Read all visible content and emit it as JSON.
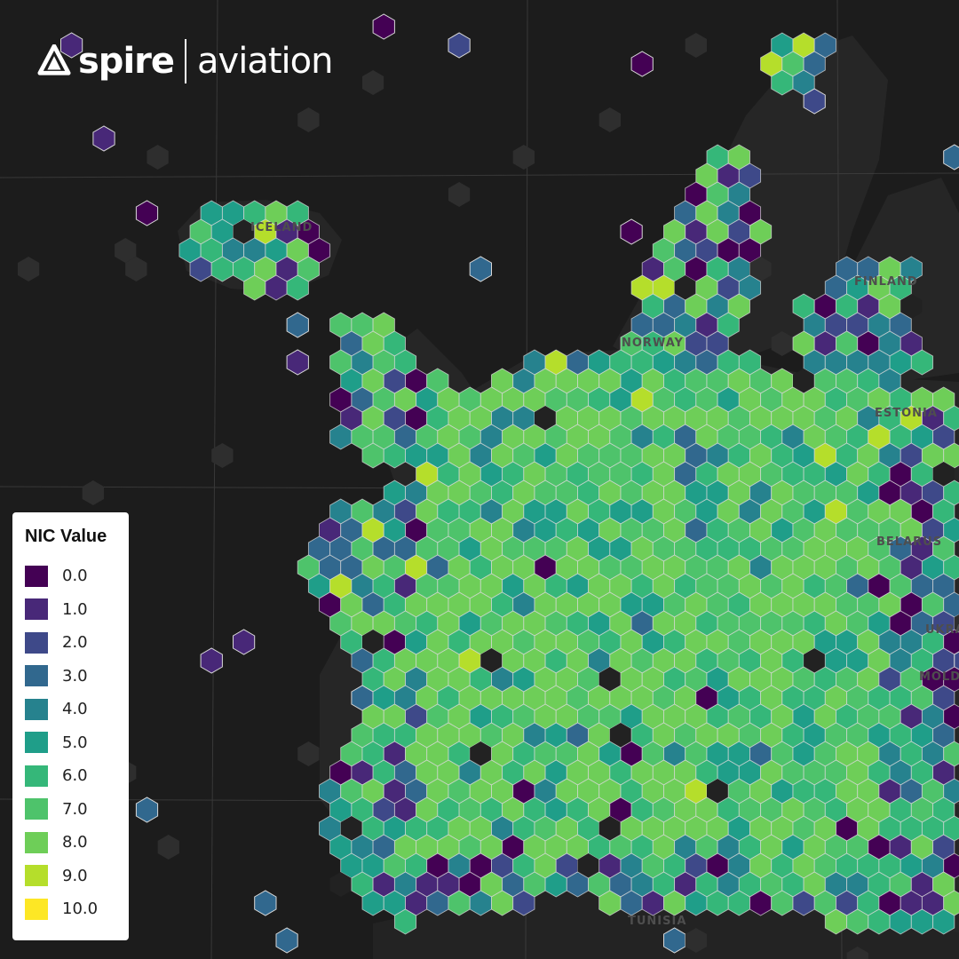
{
  "brand": {
    "logo_icon": "spire-triangle-icon",
    "name": "spire",
    "product": "aviation"
  },
  "map": {
    "country_labels": [
      "ICELAND",
      "NORWAY",
      "FINLAND",
      "ESTONIA",
      "BELARUS",
      "UKRAINE",
      "MOLDOVA",
      "TUNISIA"
    ]
  },
  "legend": {
    "title": "NIC Value",
    "items": [
      {
        "label": "0.0",
        "color": "#440154"
      },
      {
        "label": "1.0",
        "color": "#482878"
      },
      {
        "label": "2.0",
        "color": "#3e4989"
      },
      {
        "label": "3.0",
        "color": "#31688e"
      },
      {
        "label": "4.0",
        "color": "#26828e"
      },
      {
        "label": "5.0",
        "color": "#1f9e89"
      },
      {
        "label": "6.0",
        "color": "#35b779"
      },
      {
        "label": "7.0",
        "color": "#4ec36b"
      },
      {
        "label": "8.0",
        "color": "#6ece58"
      },
      {
        "label": "9.0",
        "color": "#b5de2b"
      },
      {
        "label": "10.0",
        "color": "#fde725"
      }
    ]
  },
  "colors": {
    "background": "#1c1c1c",
    "land": "#262626",
    "hex_stroke": "#d9d9d9",
    "empty_hex": "#2e2e2e"
  }
}
